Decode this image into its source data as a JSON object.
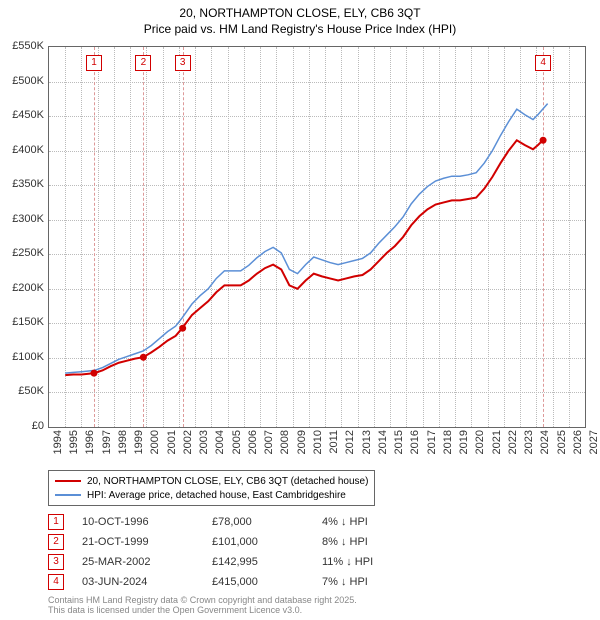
{
  "title": {
    "line1": "20, NORTHAMPTON CLOSE, ELY, CB6 3QT",
    "line2": "Price paid vs. HM Land Registry's House Price Index (HPI)"
  },
  "chart": {
    "type": "line",
    "background_color": "#ffffff",
    "border_color": "#666666",
    "grid_color": "#bbbbbb",
    "x": {
      "min": 1994,
      "max": 2027,
      "ticks": [
        1994,
        1995,
        1996,
        1997,
        1998,
        1999,
        2000,
        2001,
        2002,
        2003,
        2004,
        2005,
        2006,
        2007,
        2008,
        2009,
        2010,
        2011,
        2012,
        2013,
        2014,
        2015,
        2016,
        2017,
        2018,
        2019,
        2020,
        2021,
        2022,
        2023,
        2024,
        2025,
        2026,
        2027
      ]
    },
    "y": {
      "min": 0,
      "max": 550000,
      "ticks": [
        0,
        50000,
        100000,
        150000,
        200000,
        250000,
        300000,
        350000,
        400000,
        450000,
        500000,
        550000
      ],
      "labels": [
        "£0",
        "£50K",
        "£100K",
        "£150K",
        "£200K",
        "£250K",
        "£300K",
        "£350K",
        "£400K",
        "£450K",
        "£500K",
        "£550K"
      ]
    },
    "series": [
      {
        "name": "price_paid",
        "label": "20, NORTHAMPTON CLOSE, ELY, CB6 3QT (detached house)",
        "color": "#d10000",
        "width": 2,
        "points": [
          [
            1995.0,
            75000
          ],
          [
            1995.5,
            76000
          ],
          [
            1996.0,
            76000
          ],
          [
            1996.8,
            78000
          ],
          [
            1997.3,
            82000
          ],
          [
            1997.8,
            88000
          ],
          [
            1998.3,
            93000
          ],
          [
            1998.8,
            96000
          ],
          [
            1999.3,
            99000
          ],
          [
            1999.8,
            101000
          ],
          [
            2000.3,
            108000
          ],
          [
            2000.8,
            116000
          ],
          [
            2001.3,
            125000
          ],
          [
            2001.8,
            132000
          ],
          [
            2002.2,
            142995
          ],
          [
            2002.8,
            162000
          ],
          [
            2003.3,
            172000
          ],
          [
            2003.8,
            182000
          ],
          [
            2004.3,
            195000
          ],
          [
            2004.8,
            205000
          ],
          [
            2005.3,
            205000
          ],
          [
            2005.8,
            205000
          ],
          [
            2006.3,
            212000
          ],
          [
            2006.8,
            222000
          ],
          [
            2007.3,
            230000
          ],
          [
            2007.8,
            235000
          ],
          [
            2008.3,
            228000
          ],
          [
            2008.8,
            205000
          ],
          [
            2009.3,
            200000
          ],
          [
            2009.8,
            212000
          ],
          [
            2010.3,
            222000
          ],
          [
            2010.8,
            218000
          ],
          [
            2011.3,
            215000
          ],
          [
            2011.8,
            212000
          ],
          [
            2012.3,
            215000
          ],
          [
            2012.8,
            218000
          ],
          [
            2013.3,
            220000
          ],
          [
            2013.8,
            228000
          ],
          [
            2014.3,
            240000
          ],
          [
            2014.8,
            252000
          ],
          [
            2015.3,
            262000
          ],
          [
            2015.8,
            275000
          ],
          [
            2016.3,
            292000
          ],
          [
            2016.8,
            305000
          ],
          [
            2017.3,
            315000
          ],
          [
            2017.8,
            322000
          ],
          [
            2018.3,
            325000
          ],
          [
            2018.8,
            328000
          ],
          [
            2019.3,
            328000
          ],
          [
            2019.8,
            330000
          ],
          [
            2020.3,
            332000
          ],
          [
            2020.8,
            345000
          ],
          [
            2021.3,
            362000
          ],
          [
            2021.8,
            382000
          ],
          [
            2022.3,
            400000
          ],
          [
            2022.8,
            415000
          ],
          [
            2023.3,
            408000
          ],
          [
            2023.8,
            402000
          ],
          [
            2024.1,
            408000
          ],
          [
            2024.4,
            415000
          ]
        ]
      },
      {
        "name": "hpi",
        "label": "HPI: Average price, detached house, East Cambridgeshire",
        "color": "#5b8fd6",
        "width": 1.5,
        "points": [
          [
            1995.0,
            78000
          ],
          [
            1995.5,
            79000
          ],
          [
            1996.0,
            80000
          ],
          [
            1996.8,
            82000
          ],
          [
            1997.3,
            86000
          ],
          [
            1997.8,
            92000
          ],
          [
            1998.3,
            98000
          ],
          [
            1998.8,
            102000
          ],
          [
            1999.3,
            106000
          ],
          [
            1999.8,
            110000
          ],
          [
            2000.3,
            118000
          ],
          [
            2000.8,
            128000
          ],
          [
            2001.3,
            138000
          ],
          [
            2001.8,
            146000
          ],
          [
            2002.2,
            158000
          ],
          [
            2002.8,
            178000
          ],
          [
            2003.3,
            190000
          ],
          [
            2003.8,
            200000
          ],
          [
            2004.3,
            215000
          ],
          [
            2004.8,
            226000
          ],
          [
            2005.3,
            226000
          ],
          [
            2005.8,
            226000
          ],
          [
            2006.3,
            234000
          ],
          [
            2006.8,
            245000
          ],
          [
            2007.3,
            254000
          ],
          [
            2007.8,
            260000
          ],
          [
            2008.3,
            252000
          ],
          [
            2008.8,
            228000
          ],
          [
            2009.3,
            222000
          ],
          [
            2009.8,
            235000
          ],
          [
            2010.3,
            246000
          ],
          [
            2010.8,
            242000
          ],
          [
            2011.3,
            238000
          ],
          [
            2011.8,
            235000
          ],
          [
            2012.3,
            238000
          ],
          [
            2012.8,
            241000
          ],
          [
            2013.3,
            244000
          ],
          [
            2013.8,
            252000
          ],
          [
            2014.3,
            266000
          ],
          [
            2014.8,
            278000
          ],
          [
            2015.3,
            290000
          ],
          [
            2015.8,
            304000
          ],
          [
            2016.3,
            323000
          ],
          [
            2016.8,
            337000
          ],
          [
            2017.3,
            348000
          ],
          [
            2017.8,
            356000
          ],
          [
            2018.3,
            360000
          ],
          [
            2018.8,
            363000
          ],
          [
            2019.3,
            363000
          ],
          [
            2019.8,
            365000
          ],
          [
            2020.3,
            368000
          ],
          [
            2020.8,
            382000
          ],
          [
            2021.3,
            400000
          ],
          [
            2021.8,
            422000
          ],
          [
            2022.3,
            442000
          ],
          [
            2022.8,
            460000
          ],
          [
            2023.3,
            452000
          ],
          [
            2023.8,
            445000
          ],
          [
            2024.1,
            452000
          ],
          [
            2024.4,
            460000
          ],
          [
            2024.7,
            468000
          ]
        ]
      }
    ],
    "markers": [
      {
        "n": "1",
        "x": 1996.77,
        "y": 78000
      },
      {
        "n": "2",
        "x": 1999.81,
        "y": 101000
      },
      {
        "n": "3",
        "x": 2002.23,
        "y": 142995
      },
      {
        "n": "4",
        "x": 2024.42,
        "y": 415000
      }
    ]
  },
  "legend": {
    "rows": [
      {
        "color": "#d10000",
        "label": "20, NORTHAMPTON CLOSE, ELY, CB6 3QT (detached house)"
      },
      {
        "color": "#5b8fd6",
        "label": "HPI: Average price, detached house, East Cambridgeshire"
      }
    ]
  },
  "transactions": [
    {
      "n": "1",
      "date": "10-OCT-1996",
      "price": "£78,000",
      "diff": "4% ↓ HPI"
    },
    {
      "n": "2",
      "date": "21-OCT-1999",
      "price": "£101,000",
      "diff": "8% ↓ HPI"
    },
    {
      "n": "3",
      "date": "25-MAR-2002",
      "price": "£142,995",
      "diff": "11% ↓ HPI"
    },
    {
      "n": "4",
      "date": "03-JUN-2024",
      "price": "£415,000",
      "diff": "7% ↓ HPI"
    }
  ],
  "footer": {
    "line1": "Contains HM Land Registry data © Crown copyright and database right 2025.",
    "line2": "This data is licensed under the Open Government Licence v3.0."
  }
}
